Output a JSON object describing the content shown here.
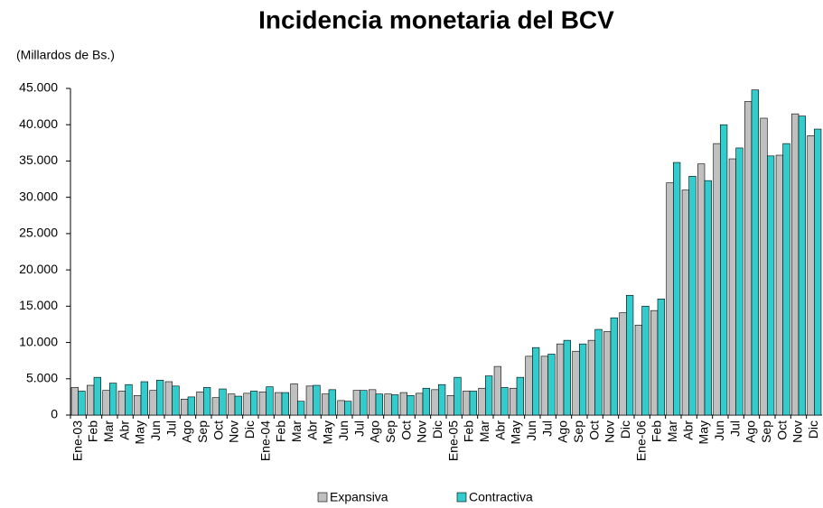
{
  "chart_data": {
    "type": "bar",
    "title": "Incidencia monetaria del BCV",
    "subtitle": "(Millardos de Bs.)",
    "categories": [
      "Ene-03",
      "Feb",
      "Mar",
      "Abr",
      "May",
      "Jun",
      "Jul",
      "Ago",
      "Sep",
      "Oct",
      "Nov",
      "Dic",
      "Ene-04",
      "Feb",
      "Mar",
      "Abr",
      "May",
      "Jun",
      "Jul",
      "Ago",
      "Sep",
      "Oct",
      "Nov",
      "Dic",
      "Ene-05",
      "Feb",
      "Mar",
      "Abr",
      "May",
      "Jun",
      "Jul",
      "Ago",
      "Sep",
      "Oct",
      "Nov",
      "Dic",
      "Ene-06",
      "Feb",
      "Mar",
      "Abr",
      "May",
      "Jun",
      "Jul",
      "Ago",
      "Sep",
      "Oct",
      "Nov",
      "Dic"
    ],
    "series": [
      {
        "name": "Expansiva",
        "color": "#c0c0c0",
        "values": [
          3800,
          4100,
          3400,
          3300,
          2700,
          3400,
          4600,
          2200,
          3200,
          2400,
          2900,
          3000,
          3200,
          3100,
          4300,
          4000,
          2900,
          2000,
          3400,
          3500,
          2900,
          3100,
          3000,
          3500,
          2700,
          3300,
          3700,
          6700,
          3700,
          8100,
          8100,
          9800,
          8800,
          10300,
          11500,
          14100,
          12400,
          14400,
          32000,
          31000,
          34600,
          37400,
          35300,
          43200,
          40900,
          35800,
          41500,
          38500
        ]
      },
      {
        "name": "Contractiva",
        "color": "#33cccc",
        "values": [
          3300,
          5200,
          4400,
          4200,
          4600,
          4800,
          4000,
          2500,
          3800,
          3600,
          2600,
          3300,
          3900,
          3100,
          1900,
          4100,
          3500,
          1900,
          3400,
          2900,
          2800,
          2700,
          3700,
          4200,
          5200,
          3300,
          5400,
          3800,
          5200,
          9300,
          8400,
          10300,
          9800,
          11800,
          13400,
          16500,
          15000,
          16000,
          34800,
          32900,
          32300,
          40000,
          36800,
          44800,
          35700,
          37400,
          41200,
          39400
        ]
      }
    ],
    "ylim": [
      0,
      45000
    ],
    "yticks": [
      0,
      {
        "value": 5000,
        "label": "5.000"
      },
      {
        "value": 10000,
        "label": "10.000"
      },
      {
        "value": 15000,
        "label": "15.000"
      },
      {
        "value": 20000,
        "label": "20.000"
      },
      {
        "value": 25000,
        "label": "25.000"
      },
      {
        "value": 30000,
        "label": "30.000"
      },
      {
        "value": 35000,
        "label": "35.000"
      },
      {
        "value": 40000,
        "label": "40.000"
      },
      {
        "value": 45000,
        "label": "45.000"
      }
    ]
  }
}
